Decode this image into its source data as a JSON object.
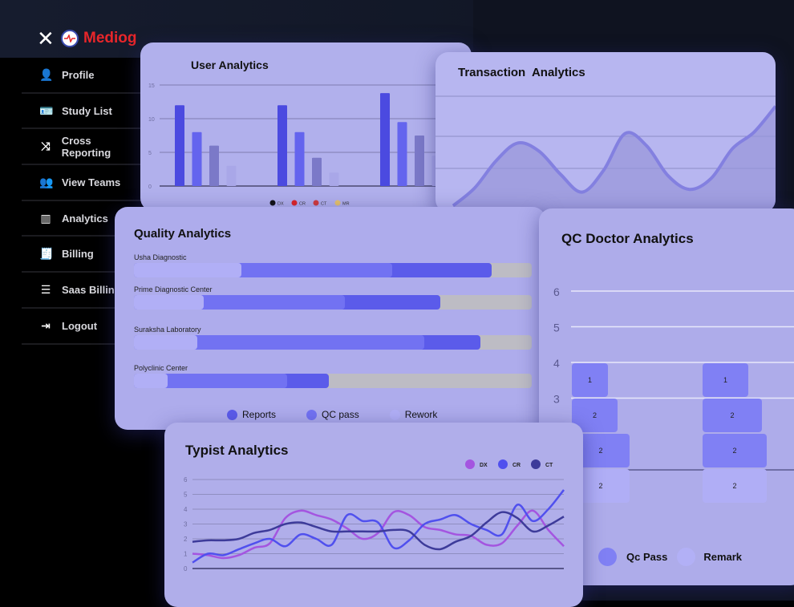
{
  "app": {
    "brand": "Mediog",
    "close_icon": "close-icon",
    "logo_icon": "heartbeat-logo-icon"
  },
  "sidebar": {
    "items": [
      {
        "label": "Profile",
        "icon": "user-icon",
        "glyph": "👤"
      },
      {
        "label": "Study List",
        "icon": "id-card-icon",
        "glyph": "🪪"
      },
      {
        "label": "Cross Reporting",
        "icon": "shuffle-icon",
        "glyph": "⤨"
      },
      {
        "label": "View Teams",
        "icon": "users-icon",
        "glyph": "👥"
      },
      {
        "label": "Analytics",
        "icon": "chart-icon",
        "glyph": "▥"
      },
      {
        "label": "Billing",
        "icon": "receipt-icon",
        "glyph": "🧾"
      },
      {
        "label": "Saas Billing",
        "icon": "list-icon",
        "glyph": "☰"
      },
      {
        "label": "Logout",
        "icon": "logout-icon",
        "glyph": "⇥"
      }
    ]
  },
  "colors": {
    "card": "#b0aeec",
    "dark": "#4b4ae0",
    "mid": "#6464ee",
    "light": "#a9a7f4",
    "purple": "#a455e0",
    "navy": "#3d3b9a",
    "brand": "#e8262a"
  },
  "chart_data": [
    {
      "id": "user",
      "type": "bar",
      "title": "User Analytics",
      "yticks": [
        "0",
        "5",
        "10",
        "15"
      ],
      "ylim": [
        0,
        15
      ],
      "legend": [
        {
          "name": "DX",
          "color": "#111111"
        },
        {
          "name": "CR",
          "color": "#e02424"
        },
        {
          "name": "CT",
          "color": "#d23a3a"
        },
        {
          "name": "MR",
          "color": "#e8c46a"
        }
      ],
      "groups": [
        [
          12,
          8,
          6,
          3
        ],
        [
          12,
          8,
          4.2,
          2
        ],
        [
          13.8,
          9.5,
          7.5,
          4.5
        ]
      ]
    },
    {
      "id": "transaction",
      "type": "area",
      "title": "Transaction  Analytics",
      "values": [
        0.2,
        1.5,
        3.5,
        4.8,
        4.2,
        2.5,
        1.2,
        2.8,
        5.5,
        4.6,
        2.4,
        1.4,
        2.2,
        4.4,
        5.6,
        7.5
      ]
    },
    {
      "id": "quality",
      "type": "bar",
      "title": "Quality Analytics",
      "categories": [
        "Usha Diagnostic",
        "Prime Diagnostic Center",
        "Suraksha Laboratory",
        "Polyclinic Center"
      ],
      "series": [
        {
          "name": "Reports",
          "values": [
            0.9,
            0.77,
            0.87,
            0.49
          ]
        },
        {
          "name": "QC pass",
          "values": [
            0.65,
            0.53,
            0.73,
            0.385
          ]
        },
        {
          "name": "Rework",
          "values": [
            0.27,
            0.175,
            0.16,
            0.085
          ]
        }
      ]
    },
    {
      "id": "qcdoctor",
      "type": "bar",
      "title": "QC Doctor Analytics",
      "yticks": [
        "3",
        "4",
        "5",
        "6"
      ],
      "legend": [
        {
          "name": "Qc Pass"
        },
        {
          "name": "Remark"
        }
      ],
      "columns": [
        [
          2,
          2,
          2,
          1
        ],
        [
          2,
          2,
          2,
          1
        ]
      ]
    },
    {
      "id": "typist",
      "type": "line",
      "title": "Typist Analytics",
      "yticks": [
        "0",
        "1",
        "2",
        "3",
        "4",
        "5",
        "6"
      ],
      "ylim": [
        0,
        6
      ],
      "series": [
        {
          "name": "DX",
          "color": "#a455e0",
          "values": [
            1.0,
            0.9,
            0.7,
            0.9,
            1.4,
            1.7,
            3.4,
            3.9,
            3.6,
            3.3,
            2.7,
            2.0,
            2.4,
            3.8,
            3.6,
            2.8,
            2.6,
            2.3,
            2.2,
            1.6,
            1.7,
            2.9,
            3.9,
            2.6,
            1.5
          ]
        },
        {
          "name": "CR",
          "color": "#5050ee",
          "values": [
            0.4,
            1.0,
            0.9,
            1.3,
            1.7,
            2.0,
            1.5,
            2.3,
            2.0,
            1.6,
            3.6,
            3.2,
            3.1,
            1.4,
            1.9,
            3.0,
            3.3,
            3.6,
            3.0,
            2.6,
            2.3,
            4.3,
            3.2,
            4.0,
            5.3
          ]
        },
        {
          "name": "CT",
          "color": "#3d3b9a",
          "values": [
            1.8,
            1.9,
            1.9,
            2.0,
            2.4,
            2.6,
            3.0,
            3.1,
            2.8,
            2.5,
            2.5,
            2.5,
            2.5,
            2.6,
            2.5,
            1.6,
            1.3,
            1.8,
            2.2,
            3.1,
            3.8,
            3.4,
            2.5,
            2.9,
            3.5
          ]
        }
      ]
    }
  ]
}
